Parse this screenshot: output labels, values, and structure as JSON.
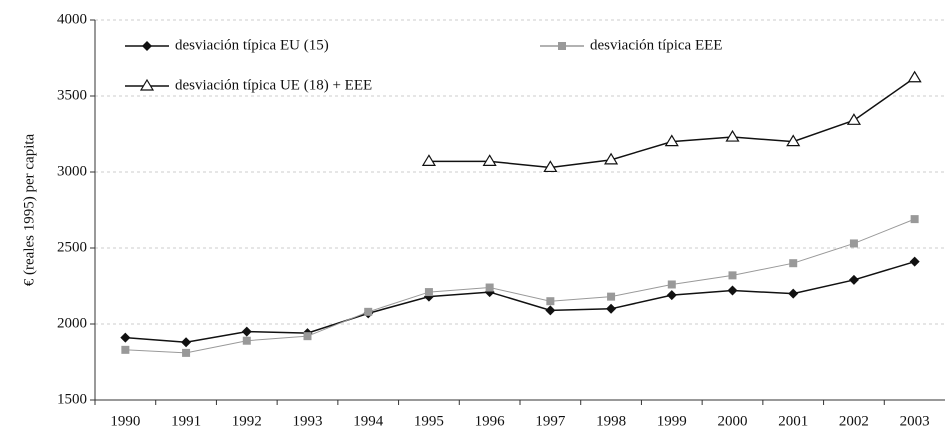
{
  "chart_data": {
    "type": "line",
    "y_label": "€ (reales 1995) per capita",
    "categories": [
      "1990",
      "1991",
      "1992",
      "1993",
      "1994",
      "1995",
      "1996",
      "1997",
      "1998",
      "1999",
      "2000",
      "2001",
      "2002",
      "2003"
    ],
    "series": [
      {
        "name": "desviación típica EU (15)",
        "color": "#111111",
        "marker": "diamond",
        "values": [
          1910,
          1880,
          1950,
          1940,
          2070,
          2180,
          2210,
          2090,
          2100,
          2190,
          2220,
          2200,
          2290,
          2410
        ]
      },
      {
        "name": "desviación típica EEE",
        "color": "#999999",
        "marker": "square",
        "values": [
          1830,
          1810,
          1890,
          1920,
          2080,
          2210,
          2240,
          2150,
          2180,
          2260,
          2320,
          2400,
          2530,
          2690
        ]
      },
      {
        "name": "desviación típica UE (18) + EEE",
        "color": "#111111",
        "marker": "triangle",
        "values": [
          null,
          null,
          null,
          null,
          null,
          3070,
          3070,
          3030,
          3080,
          3200,
          3230,
          3200,
          3340,
          3620
        ]
      }
    ],
    "ylim": [
      1500,
      4000
    ],
    "yticks": [
      1500,
      2000,
      2500,
      3000,
      3500,
      4000
    ],
    "grid": true
  }
}
